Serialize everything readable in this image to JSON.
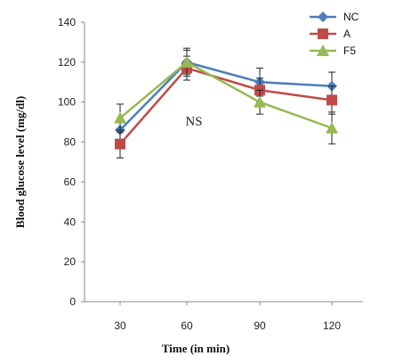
{
  "chart_data": {
    "type": "line",
    "categories": [
      "30",
      "60",
      "90",
      "120"
    ],
    "ylabel": "Blood glucose level (mg/dl)",
    "xlabel": "Time (in min)",
    "ylim": [
      0,
      140
    ],
    "yticks": [
      0,
      20,
      40,
      60,
      80,
      100,
      120,
      140
    ],
    "grid": false,
    "legend_position": "top-right",
    "annotation": "NS",
    "series": [
      {
        "name": "NC",
        "color": "#4a7ebb",
        "marker": "diamond",
        "values": [
          86,
          120,
          110,
          108
        ],
        "errors": [
          5,
          6,
          7,
          7
        ]
      },
      {
        "name": "A",
        "color": "#be4b48",
        "marker": "square",
        "values": [
          79,
          117,
          106,
          101
        ],
        "errors": [
          7,
          6,
          6,
          7
        ]
      },
      {
        "name": "F5",
        "color": "#98b954",
        "marker": "triangle",
        "values": [
          92,
          120,
          100,
          87
        ],
        "errors": [
          7,
          7,
          6,
          8
        ]
      }
    ]
  }
}
